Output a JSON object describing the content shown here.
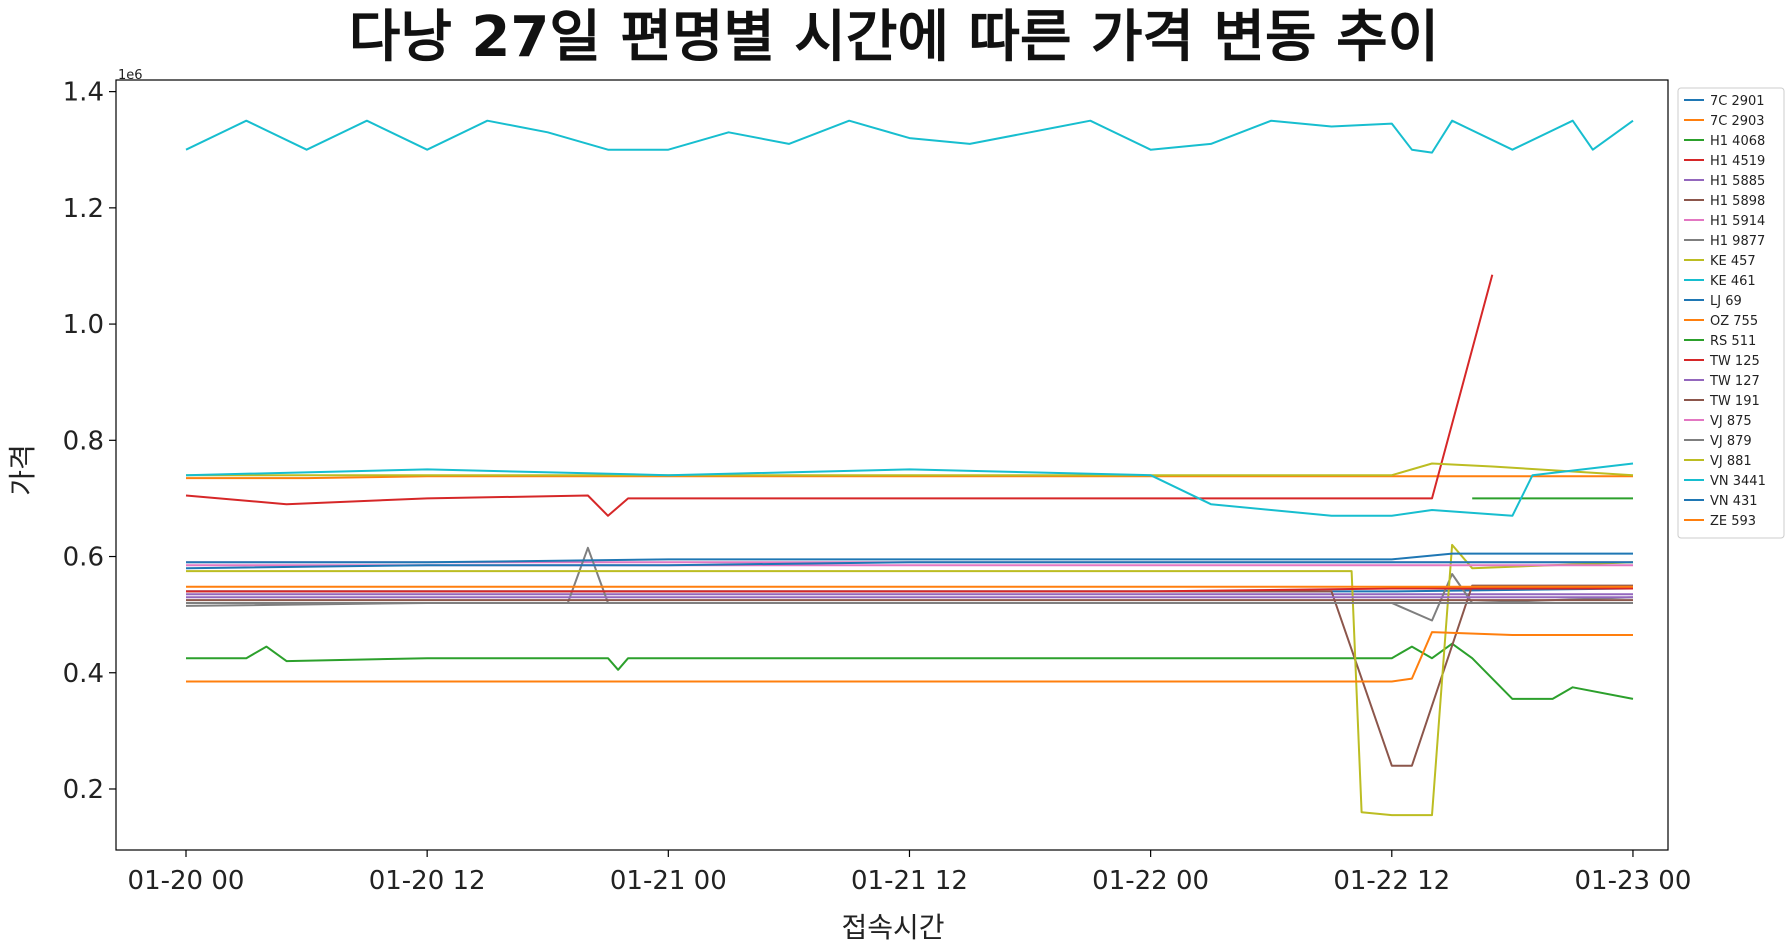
{
  "chart_data": {
    "type": "line",
    "title": "다낭 27일 편명별 시간에 따른 가격 변동 추이",
    "xlabel": "접속시간",
    "ylabel": "가격",
    "y_offset_label": "1e6",
    "x_ticks": [
      "01-20 00",
      "01-20 12",
      "01-21 00",
      "01-21 12",
      "01-22 00",
      "01-22 12",
      "01-23 00"
    ],
    "x_range_hours": [
      0,
      72.5
    ],
    "y_ticks": [
      "0.2",
      "0.4",
      "0.6",
      "0.8",
      "1.0",
      "1.2",
      "1.4"
    ],
    "y_tick_values": [
      200000,
      400000,
      600000,
      800000,
      1000000,
      1200000,
      1400000
    ],
    "ylim": [
      95000,
      1420000
    ],
    "grid": false,
    "legend_position": "outside-right",
    "series": [
      {
        "name": "7C 2901",
        "color": "#1f77b4",
        "points": [
          [
            0,
            540000
          ],
          [
            12,
            540000
          ],
          [
            24,
            540000
          ],
          [
            36,
            540000
          ],
          [
            48,
            540000
          ],
          [
            60,
            540000
          ],
          [
            72,
            545000
          ]
        ]
      },
      {
        "name": "7C 2903",
        "color": "#ff7f0e",
        "points": [
          [
            0,
            735000
          ],
          [
            6,
            735000
          ],
          [
            12,
            738000
          ],
          [
            24,
            738000
          ],
          [
            36,
            738000
          ],
          [
            48,
            738000
          ],
          [
            60,
            738000
          ],
          [
            72,
            738000
          ]
        ]
      },
      {
        "name": "H1 4068",
        "color": "#2ca02c",
        "points": [
          [
            0,
            425000
          ],
          [
            3,
            425000
          ],
          [
            4,
            445000
          ],
          [
            5,
            420000
          ],
          [
            12,
            425000
          ],
          [
            21,
            425000
          ],
          [
            21.5,
            405000
          ],
          [
            22,
            425000
          ],
          [
            44,
            425000
          ],
          [
            60,
            425000
          ],
          [
            61,
            445000
          ],
          [
            62,
            425000
          ],
          [
            63,
            450000
          ],
          [
            64,
            425000
          ],
          [
            66,
            355000
          ],
          [
            68,
            355000
          ],
          [
            69,
            375000
          ],
          [
            72,
            355000
          ]
        ]
      },
      {
        "name": "H1 4519",
        "color": "#d62728",
        "points": [
          [
            0,
            705000
          ],
          [
            5,
            690000
          ],
          [
            12,
            700000
          ],
          [
            20,
            705000
          ],
          [
            21,
            670000
          ],
          [
            22,
            700000
          ],
          [
            36,
            700000
          ],
          [
            48,
            700000
          ],
          [
            61,
            700000
          ],
          [
            62,
            700000
          ],
          [
            65,
            1085000
          ]
        ]
      },
      {
        "name": "H1 5885",
        "color": "#9467bd",
        "points": [
          [
            0,
            535000
          ],
          [
            12,
            535000
          ],
          [
            24,
            535000
          ],
          [
            36,
            535000
          ],
          [
            48,
            535000
          ],
          [
            60,
            535000
          ],
          [
            72,
            535000
          ]
        ]
      },
      {
        "name": "H1 5898",
        "color": "#8c564b",
        "points": [
          [
            0,
            540000
          ],
          [
            12,
            540000
          ],
          [
            24,
            540000
          ],
          [
            36,
            540000
          ],
          [
            48,
            540000
          ],
          [
            57,
            540000
          ],
          [
            60,
            240000
          ],
          [
            61,
            240000
          ],
          [
            64,
            550000
          ],
          [
            72,
            550000
          ]
        ]
      },
      {
        "name": "H1 5914",
        "color": "#e377c2",
        "points": [
          [
            0,
            590000
          ],
          [
            12,
            590000
          ],
          [
            24,
            590000
          ],
          [
            36,
            590000
          ],
          [
            48,
            590000
          ],
          [
            60,
            590000
          ],
          [
            72,
            590000
          ]
        ]
      },
      {
        "name": "H1 9877",
        "color": "#7f7f7f",
        "points": [
          [
            0,
            515000
          ],
          [
            12,
            520000
          ],
          [
            19,
            520000
          ],
          [
            20,
            615000
          ],
          [
            21,
            520000
          ],
          [
            24,
            520000
          ],
          [
            36,
            520000
          ],
          [
            48,
            520000
          ],
          [
            60,
            520000
          ],
          [
            62,
            490000
          ],
          [
            63,
            570000
          ],
          [
            64,
            520000
          ],
          [
            72,
            530000
          ]
        ]
      },
      {
        "name": "KE 457",
        "color": "#bcbd22",
        "points": [
          [
            0,
            575000
          ],
          [
            12,
            575000
          ],
          [
            24,
            575000
          ],
          [
            36,
            575000
          ],
          [
            48,
            575000
          ],
          [
            58,
            575000
          ],
          [
            58.5,
            160000
          ],
          [
            60,
            155000
          ],
          [
            61,
            155000
          ],
          [
            62,
            155000
          ],
          [
            63,
            620000
          ],
          [
            64,
            580000
          ],
          [
            72,
            590000
          ]
        ]
      },
      {
        "name": "KE 461",
        "color": "#17becf",
        "points": [
          [
            0,
            1300000
          ],
          [
            3,
            1350000
          ],
          [
            6,
            1300000
          ],
          [
            9,
            1350000
          ],
          [
            12,
            1300000
          ],
          [
            15,
            1350000
          ],
          [
            18,
            1330000
          ],
          [
            21,
            1300000
          ],
          [
            24,
            1300000
          ],
          [
            27,
            1330000
          ],
          [
            30,
            1310000
          ],
          [
            33,
            1350000
          ],
          [
            36,
            1320000
          ],
          [
            39,
            1310000
          ],
          [
            42,
            1330000
          ],
          [
            45,
            1350000
          ],
          [
            48,
            1300000
          ],
          [
            51,
            1310000
          ],
          [
            54,
            1350000
          ],
          [
            57,
            1340000
          ],
          [
            60,
            1345000
          ],
          [
            61,
            1300000
          ],
          [
            62,
            1295000
          ],
          [
            63,
            1350000
          ],
          [
            66,
            1300000
          ],
          [
            69,
            1350000
          ],
          [
            70,
            1300000
          ],
          [
            72,
            1350000
          ]
        ]
      },
      {
        "name": "LJ 69",
        "color": "#1f77b4",
        "points": [
          [
            0,
            590000
          ],
          [
            12,
            590000
          ],
          [
            24,
            595000
          ],
          [
            36,
            595000
          ],
          [
            48,
            595000
          ],
          [
            60,
            595000
          ],
          [
            63,
            605000
          ],
          [
            72,
            605000
          ]
        ]
      },
      {
        "name": "OZ 755",
        "color": "#ff7f0e",
        "points": [
          [
            0,
            385000
          ],
          [
            12,
            385000
          ],
          [
            24,
            385000
          ],
          [
            36,
            385000
          ],
          [
            48,
            385000
          ],
          [
            60,
            385000
          ],
          [
            61,
            390000
          ],
          [
            62,
            470000
          ],
          [
            66,
            465000
          ],
          [
            72,
            465000
          ]
        ]
      },
      {
        "name": "RS 511",
        "color": "#2ca02c",
        "points": [
          [
            64,
            700000
          ],
          [
            72,
            700000
          ]
        ]
      },
      {
        "name": "TW 125",
        "color": "#d62728",
        "points": [
          [
            0,
            540000
          ],
          [
            12,
            540000
          ],
          [
            24,
            540000
          ],
          [
            36,
            540000
          ],
          [
            48,
            540000
          ],
          [
            60,
            545000
          ],
          [
            72,
            545000
          ]
        ]
      },
      {
        "name": "TW 127",
        "color": "#9467bd",
        "points": [
          [
            0,
            530000
          ],
          [
            24,
            530000
          ],
          [
            48,
            530000
          ],
          [
            72,
            530000
          ]
        ]
      },
      {
        "name": "TW 191",
        "color": "#8c564b",
        "points": [
          [
            0,
            525000
          ],
          [
            24,
            525000
          ],
          [
            48,
            525000
          ],
          [
            72,
            525000
          ]
        ]
      },
      {
        "name": "VJ 875",
        "color": "#e377c2",
        "points": [
          [
            0,
            585000
          ],
          [
            24,
            585000
          ],
          [
            48,
            585000
          ],
          [
            72,
            585000
          ]
        ]
      },
      {
        "name": "VJ 879",
        "color": "#7f7f7f",
        "points": [
          [
            0,
            520000
          ],
          [
            24,
            520000
          ],
          [
            48,
            520000
          ],
          [
            72,
            520000
          ]
        ]
      },
      {
        "name": "VJ 881",
        "color": "#bcbd22",
        "points": [
          [
            0,
            740000
          ],
          [
            24,
            740000
          ],
          [
            48,
            740000
          ],
          [
            60,
            740000
          ],
          [
            62,
            760000
          ],
          [
            65,
            755000
          ],
          [
            72,
            740000
          ]
        ]
      },
      {
        "name": "VN 3441",
        "color": "#17becf",
        "points": [
          [
            0,
            740000
          ],
          [
            12,
            750000
          ],
          [
            24,
            740000
          ],
          [
            36,
            750000
          ],
          [
            48,
            740000
          ],
          [
            51,
            690000
          ],
          [
            54,
            680000
          ],
          [
            57,
            670000
          ],
          [
            60,
            670000
          ],
          [
            62,
            680000
          ],
          [
            66,
            670000
          ],
          [
            67,
            740000
          ],
          [
            72,
            760000
          ]
        ]
      },
      {
        "name": "VN 431",
        "color": "#1f77b4",
        "points": [
          [
            0,
            580000
          ],
          [
            12,
            585000
          ],
          [
            24,
            585000
          ],
          [
            36,
            590000
          ],
          [
            48,
            590000
          ],
          [
            60,
            590000
          ],
          [
            72,
            590000
          ]
        ]
      },
      {
        "name": "ZE 593",
        "color": "#ff7f0e",
        "points": [
          [
            0,
            548000
          ],
          [
            24,
            548000
          ],
          [
            48,
            548000
          ],
          [
            60,
            548000
          ],
          [
            72,
            548000
          ]
        ]
      }
    ]
  }
}
